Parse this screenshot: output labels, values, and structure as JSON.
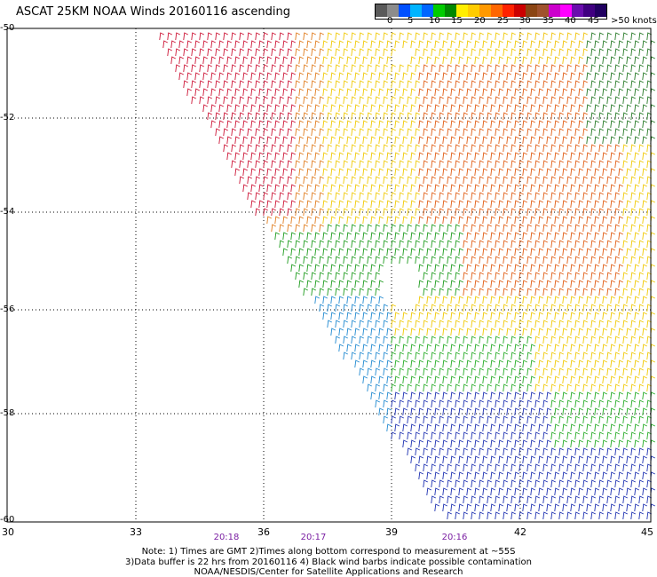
{
  "title": "ASCAT 25KM NOAA Winds 20160116 ascending",
  "colorbar": {
    "labels": [
      "0",
      "5",
      "10",
      "15",
      "20",
      "25",
      "30",
      "35",
      "40",
      "45",
      ">50 knots"
    ],
    "colors": [
      "#5a5a5a",
      "#8c8c8c",
      "#0050ff",
      "#00b4ff",
      "#0066ff",
      "#00cc00",
      "#008800",
      "#ffee00",
      "#ffcc00",
      "#ff9900",
      "#ff6600",
      "#ff2200",
      "#cc0000",
      "#8b4513",
      "#a0522d",
      "#cc00cc",
      "#ff00ff",
      "#6a0dad",
      "#400080",
      "#200060"
    ]
  },
  "lat_labels": [
    "-50",
    "-52",
    "-54",
    "-56",
    "-58",
    "-60"
  ],
  "lon_labels": [
    "30",
    "33",
    "36",
    "39",
    "42",
    "45"
  ],
  "time_labels": [
    "20:18",
    "20:17",
    "20:16"
  ],
  "notes": [
    "Note: 1) Times are GMT 2)Times along bottom correspond to measurement at ~55S",
    "3)Data buffer is 22 hrs from 20160116 4) Black wind barbs indicate possible contamination",
    "NOAA/NESDIS/Center for Satellite Applications and Research"
  ]
}
